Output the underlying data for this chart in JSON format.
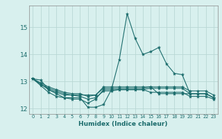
{
  "xlabel": "Humidex (Indice chaleur)",
  "ylabel": "",
  "bg_color": "#d8f0ee",
  "grid_color": "#b8d8d4",
  "line_color": "#1a6b6b",
  "xlim": [
    -0.5,
    23.5
  ],
  "ylim": [
    11.8,
    15.8
  ],
  "yticks": [
    12,
    13,
    14,
    15
  ],
  "xticks": [
    0,
    1,
    2,
    3,
    4,
    5,
    6,
    7,
    8,
    9,
    10,
    11,
    12,
    13,
    14,
    15,
    16,
    17,
    18,
    19,
    20,
    21,
    22,
    23
  ],
  "series": [
    [
      13.1,
      12.9,
      12.7,
      12.55,
      12.4,
      12.4,
      12.4,
      12.05,
      12.05,
      12.15,
      12.7,
      13.8,
      15.5,
      14.6,
      14.0,
      14.1,
      14.25,
      13.65,
      13.3,
      13.25,
      12.55,
      12.55,
      12.55,
      12.4
    ],
    [
      13.1,
      13.05,
      12.7,
      12.6,
      12.5,
      12.5,
      12.5,
      12.5,
      12.5,
      12.8,
      12.8,
      12.8,
      12.8,
      12.8,
      12.8,
      12.8,
      12.55,
      12.55,
      12.55,
      12.55,
      12.55,
      12.55,
      12.55,
      12.4
    ],
    [
      13.1,
      12.85,
      12.6,
      12.45,
      12.4,
      12.35,
      12.35,
      12.2,
      12.35,
      12.7,
      12.7,
      12.7,
      12.7,
      12.7,
      12.7,
      12.6,
      12.6,
      12.6,
      12.6,
      12.6,
      12.45,
      12.45,
      12.45,
      12.35
    ],
    [
      13.1,
      12.9,
      12.75,
      12.65,
      12.55,
      12.5,
      12.45,
      12.35,
      12.4,
      12.65,
      12.65,
      12.7,
      12.7,
      12.7,
      12.7,
      12.75,
      12.75,
      12.75,
      12.75,
      12.75,
      12.55,
      12.55,
      12.55,
      12.4
    ],
    [
      13.1,
      12.95,
      12.8,
      12.7,
      12.6,
      12.55,
      12.55,
      12.45,
      12.5,
      12.75,
      12.75,
      12.75,
      12.75,
      12.75,
      12.75,
      12.8,
      12.8,
      12.8,
      12.8,
      12.8,
      12.65,
      12.65,
      12.65,
      12.5
    ]
  ]
}
